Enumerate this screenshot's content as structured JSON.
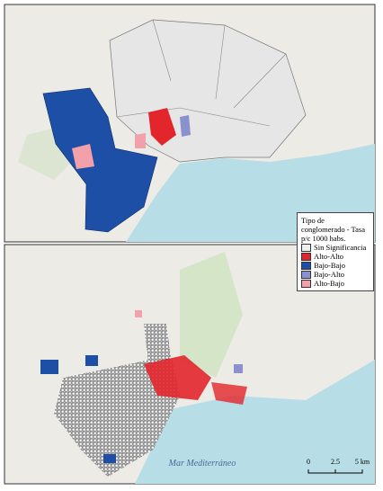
{
  "legend": {
    "title": "Tipo de conglomerado - Tasa p/c 1000 habs.",
    "items": [
      {
        "label": "Sin Significancia",
        "color": "#eeeeee"
      },
      {
        "label": "Alto-Alto",
        "color": "#e3262b"
      },
      {
        "label": "Bajo-Bajo",
        "color": "#1d4fa6"
      },
      {
        "label": "Bajo-Alto",
        "color": "#8b90cf"
      },
      {
        "label": "Alto-Bajo",
        "color": "#f2a1aa"
      }
    ]
  },
  "sea_label": "Mar Mediterráneo",
  "scale_bar": {
    "labels": [
      "0",
      "2.5",
      "5 km"
    ]
  }
}
